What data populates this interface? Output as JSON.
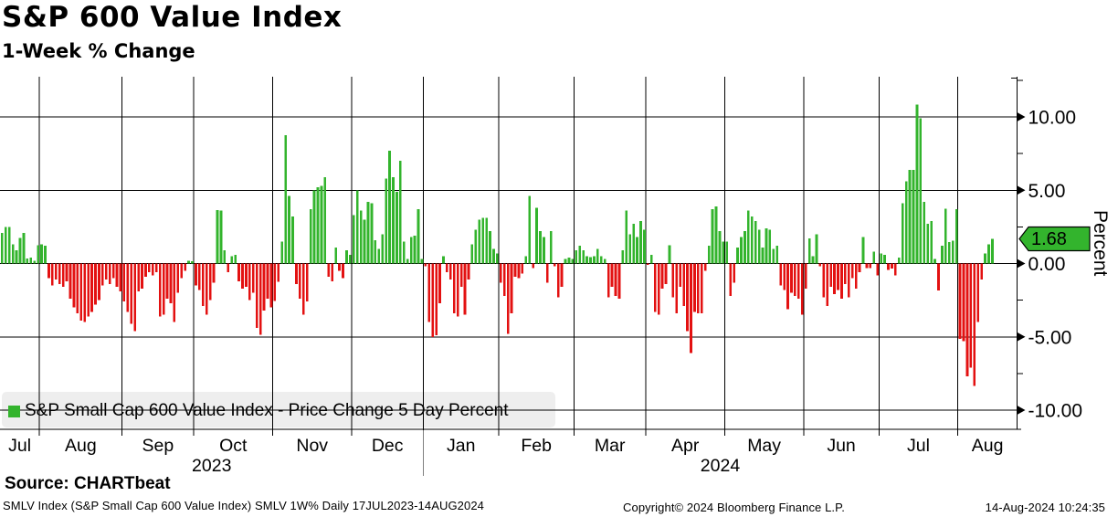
{
  "header": {
    "title": "S&P 600 Value Index",
    "subtitle": "1-Week % Change"
  },
  "legend": {
    "label": "S&P Small Cap 600 Value Index - Price Change 5 Day Percent"
  },
  "marker": {
    "value_label": "1.68"
  },
  "source_line": "Source: CHARTbeat",
  "footer": {
    "left": "SMLV Index (S&P Small Cap 600 Value Index) SMLV 1W%  Daily 17JUL2023-14AUG2024",
    "center": "Copyright© 2024 Bloomberg Finance L.P.",
    "right": "14-Aug-2024 10:24:35"
  },
  "chart_data": {
    "type": "bar",
    "title": "S&P 600 Value Index",
    "subtitle": "1-Week % Change",
    "ylabel": "Percent",
    "ylim": [
      -11.3,
      12.7
    ],
    "grid": true,
    "legend_position": "bottom-left",
    "series_name": "S&P Small Cap 600 Value Index - Price Change 5 Day Percent",
    "frequency": "Daily",
    "date_range": "17JUL2023-14AUG2024",
    "last_value": 1.68,
    "colors": {
      "positive": "#33b42d",
      "negative": "#e31111",
      "grid": "#000000",
      "year_separator": "#808080"
    },
    "y_major_ticks": [
      {
        "value": 10,
        "label": "10.00"
      },
      {
        "value": 5,
        "label": "5.00"
      },
      {
        "value": 0,
        "label": "0.00"
      },
      {
        "value": -5,
        "label": "-5.00"
      },
      {
        "value": -10,
        "label": "-10.00"
      }
    ],
    "y_minor_tick_values": [
      12.5,
      7.5,
      2.5,
      -2.5,
      -7.5
    ],
    "months": [
      {
        "label": "Jul",
        "year": 2023,
        "trading_days": 11
      },
      {
        "label": "Aug",
        "year": 2023,
        "trading_days": 23
      },
      {
        "label": "Sep",
        "year": 2023,
        "trading_days": 20
      },
      {
        "label": "Oct",
        "year": 2023,
        "trading_days": 22
      },
      {
        "label": "Nov",
        "year": 2023,
        "trading_days": 22
      },
      {
        "label": "Dec",
        "year": 2023,
        "trading_days": 20
      },
      {
        "label": "Jan",
        "year": 2024,
        "trading_days": 21
      },
      {
        "label": "Feb",
        "year": 2024,
        "trading_days": 21
      },
      {
        "label": "Mar",
        "year": 2024,
        "trading_days": 20
      },
      {
        "label": "Apr",
        "year": 2024,
        "trading_days": 22
      },
      {
        "label": "May",
        "year": 2024,
        "trading_days": 22
      },
      {
        "label": "Jun",
        "year": 2024,
        "trading_days": 21
      },
      {
        "label": "Jul",
        "year": 2024,
        "trading_days": 22
      },
      {
        "label": "Aug",
        "year": 2024,
        "trading_days": 10
      }
    ],
    "years": [
      {
        "label": "2023",
        "from_month": 0,
        "to_month": 5
      },
      {
        "label": "2024",
        "from_month": 6,
        "to_month": 13
      }
    ],
    "values": [
      2.1,
      2.5,
      2.5,
      1.3,
      0.9,
      1.75,
      2.1,
      0.35,
      0.4,
      0.2,
      1.25,
      1.3,
      1.2,
      -1.0,
      -1.5,
      -1.1,
      -1.4,
      -1.6,
      -1.2,
      -2.4,
      -3.0,
      -3.4,
      -3.9,
      -4.0,
      -3.6,
      -3.3,
      -2.8,
      -2.5,
      -1.5,
      -1.1,
      -1.4,
      -1.0,
      -1.6,
      -1.9,
      -2.6,
      -3.3,
      -4.1,
      -4.6,
      -1.9,
      -1.7,
      -0.9,
      -0.6,
      -0.8,
      -0.6,
      -3.6,
      -3.5,
      -2.4,
      -2.7,
      -4.0,
      -2.0,
      -1.0,
      -0.5,
      0.2,
      0.15,
      -1.5,
      -1.8,
      -2.9,
      -3.5,
      -2.5,
      -1.3,
      3.65,
      3.6,
      0.9,
      -0.6,
      0.5,
      0.6,
      -1.2,
      -1.7,
      -1.6,
      -2.5,
      -2.0,
      -4.4,
      -4.85,
      -3.2,
      -2.4,
      -3.0,
      -2.55,
      -1.25,
      1.5,
      8.75,
      4.6,
      3.2,
      -1.4,
      -2.4,
      -3.5,
      -2.6,
      3.7,
      5.0,
      5.2,
      5.3,
      5.9,
      -0.9,
      -1.2,
      1.1,
      -0.5,
      -1.0,
      0.9,
      0.6,
      3.3,
      5.0,
      3.6,
      3.0,
      4.2,
      4.1,
      1.6,
      1.0,
      2.0,
      5.8,
      7.7,
      5.9,
      4.9,
      7.0,
      1.5,
      0.3,
      1.8,
      1.9,
      3.7,
      0.3,
      -0.2,
      -4.0,
      -5.0,
      -4.9,
      -2.7,
      0.5,
      -0.6,
      -1.1,
      -3.4,
      -3.6,
      -1.6,
      -3.5,
      -1.1,
      1.3,
      2.3,
      3.0,
      3.1,
      3.1,
      2.2,
      1.0,
      0.7,
      -1.3,
      -2.2,
      -4.8,
      -3.4,
      -0.9,
      -1.0,
      -0.7,
      0.5,
      4.6,
      -0.3,
      3.8,
      2.2,
      1.8,
      -1.3,
      2.2,
      -0.2,
      -2.3,
      -1.6,
      0.3,
      0.4,
      0.3,
      0.9,
      1.2,
      0.9,
      0.5,
      0.45,
      0.5,
      1.0,
      0.5,
      0.3,
      -2.3,
      -1.6,
      -2.2,
      -2.4,
      0.9,
      3.6,
      2.0,
      2.7,
      1.8,
      2.9,
      2.3,
      -0.1,
      0.6,
      -3.3,
      -3.5,
      -1.7,
      -1.4,
      1.25,
      -2.3,
      -3.4,
      -1.6,
      -2.9,
      -4.6,
      -6.1,
      -3.3,
      -3.4,
      -3.4,
      -0.5,
      1.2,
      3.7,
      3.9,
      2.2,
      1.5,
      1.5,
      -2.2,
      -1.3,
      1.1,
      1.8,
      2.2,
      3.6,
      3.2,
      2.9,
      2.3,
      1.1,
      2.4,
      2.3,
      1.0,
      1.2,
      -1.5,
      -1.8,
      -3.1,
      -2.0,
      -2.2,
      -2.4,
      -3.5,
      -1.7,
      1.7,
      0.5,
      2.0,
      -0.2,
      -2.3,
      -2.9,
      -1.6,
      -2.1,
      -1.8,
      -2.4,
      -1.4,
      -2.3,
      -1.0,
      -1.7,
      -0.6,
      1.8,
      -0.3,
      -0.3,
      0.8,
      -0.8,
      0.7,
      0.6,
      -0.45,
      -0.35,
      -0.8,
      0.4,
      4.1,
      5.6,
      6.4,
      6.4,
      10.85,
      9.9,
      4.2,
      2.7,
      2.9,
      0.3,
      -1.85,
      1.2,
      3.75,
      1.45,
      1.55,
      3.7,
      -5.15,
      -5.3,
      -7.7,
      -7.1,
      -8.35,
      -4.0,
      -1.1,
      0.7,
      1.3,
      1.68
    ]
  }
}
